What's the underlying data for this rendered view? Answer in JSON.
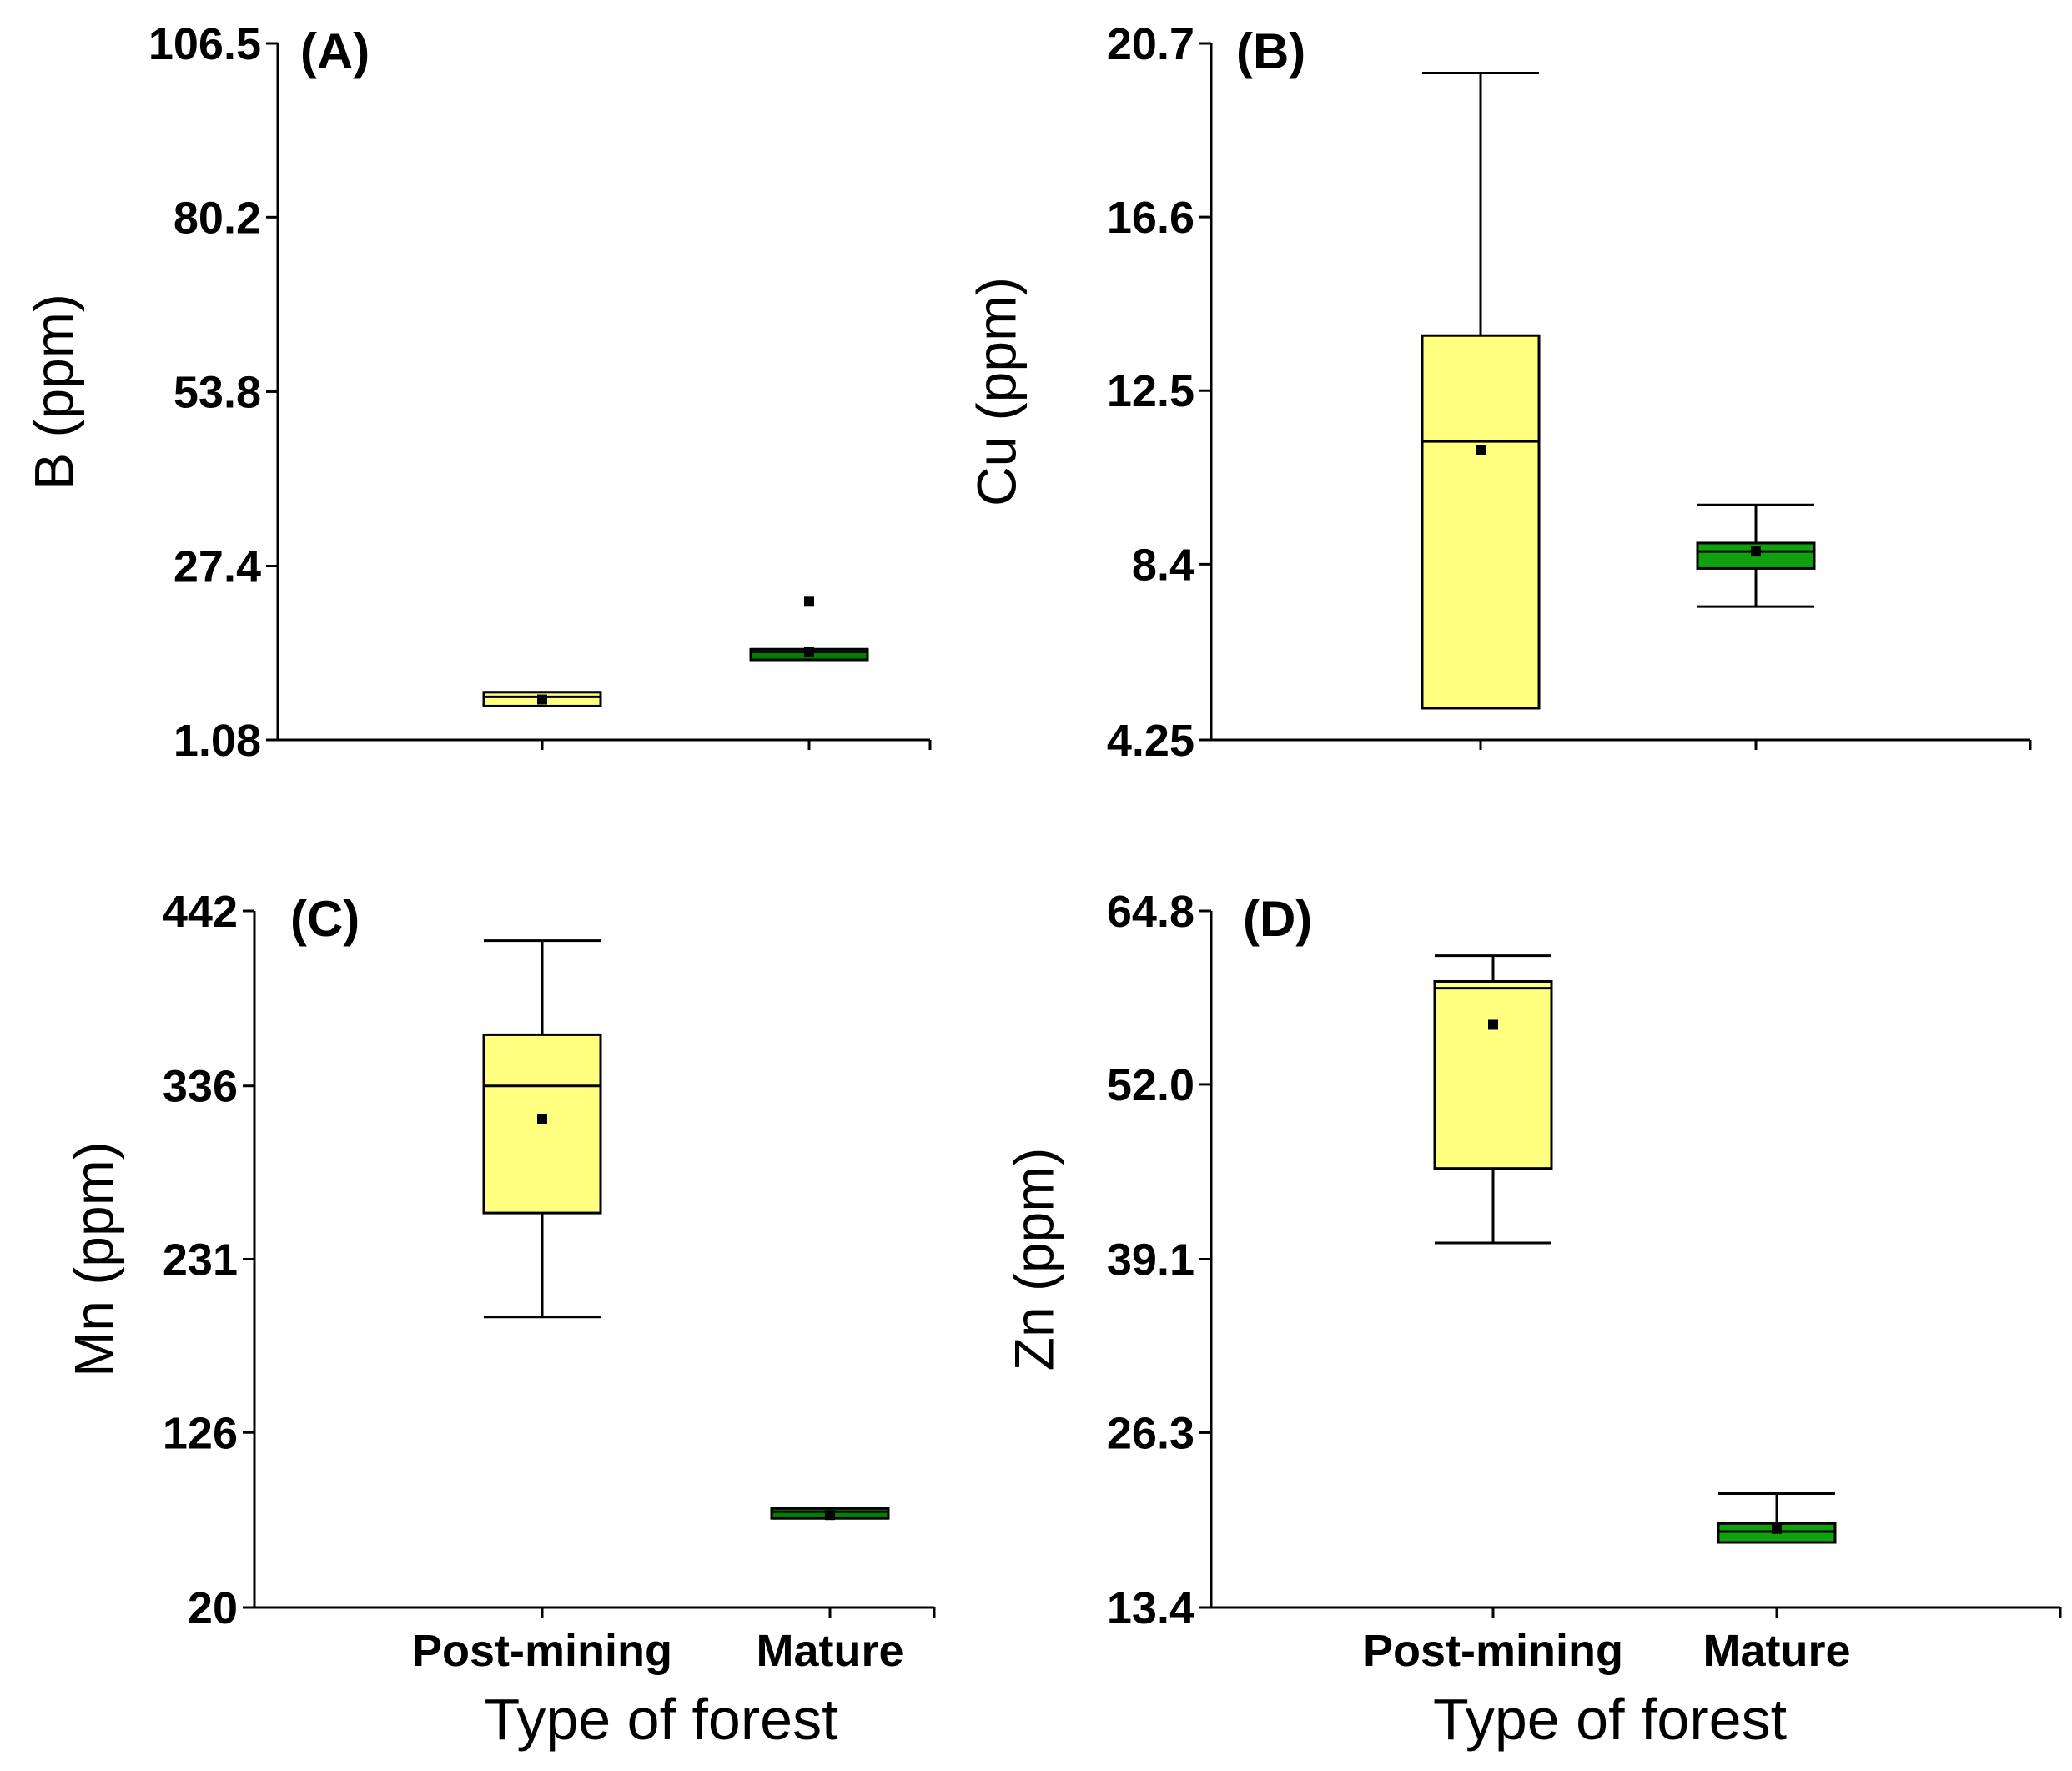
{
  "chart_data": [
    {
      "type": "box",
      "panel": "(A)",
      "ylabel": "B (ppm)",
      "xlabel": "",
      "yticks": [
        "1.08",
        "27.4",
        "53.8",
        "80.2",
        "106.5"
      ],
      "ylim": [
        1.08,
        106.5
      ],
      "categories": [
        "Post-mining",
        "Mature"
      ],
      "show_category_labels": false,
      "boxes": [
        {
          "category": "Post-mining",
          "whisker_low": 6.2,
          "q1": 6.2,
          "median": 7.6,
          "q3": 8.3,
          "whisker_high": 8.3,
          "mean": 7.2,
          "color": "#ffff80"
        },
        {
          "category": "Mature",
          "whisker_low": 13.2,
          "q1": 13.2,
          "median": 14.4,
          "q3": 14.8,
          "whisker_high": 14.8,
          "mean": 14.4,
          "outlier": 22.0,
          "color": "#008000"
        }
      ]
    },
    {
      "type": "box",
      "panel": "(B)",
      "ylabel": "Cu (ppm)",
      "xlabel": "",
      "yticks": [
        "4.25",
        "8.4",
        "12.5",
        "16.6",
        "20.7"
      ],
      "ylim": [
        4.25,
        20.7
      ],
      "categories": [
        "Post-mining",
        "Mature"
      ],
      "show_category_labels": false,
      "boxes": [
        {
          "category": "Post-mining",
          "whisker_low": 5.0,
          "q1": 5.0,
          "median": 11.3,
          "q3": 13.8,
          "whisker_high": 20.0,
          "mean": 11.1,
          "color": "#ffff80"
        },
        {
          "category": "Mature",
          "whisker_low": 7.4,
          "q1": 8.3,
          "median": 8.7,
          "q3": 8.9,
          "whisker_high": 9.8,
          "mean": 8.7,
          "color": "#10a010"
        }
      ]
    },
    {
      "type": "box",
      "panel": "(C)",
      "ylabel": "Mn (ppm)",
      "xlabel": "Type of forest",
      "yticks": [
        "20",
        "126",
        "231",
        "336",
        "442"
      ],
      "ylim": [
        20,
        442
      ],
      "categories": [
        "Post-mining",
        "Mature"
      ],
      "show_category_labels": true,
      "boxes": [
        {
          "category": "Post-mining",
          "whisker_low": 196,
          "q1": 259,
          "median": 336,
          "q3": 367,
          "whisker_high": 424,
          "mean": 316,
          "color": "#ffff80"
        },
        {
          "category": "Mature",
          "whisker_low": 74,
          "q1": 74,
          "median": 78,
          "q3": 80,
          "whisker_high": 80,
          "mean": 76,
          "color": "#008000"
        }
      ]
    },
    {
      "type": "box",
      "panel": "(D)",
      "ylabel": "Zn (ppm)",
      "xlabel": "Type of forest",
      "yticks": [
        "13.4",
        "26.3",
        "39.1",
        "52.0",
        "64.8"
      ],
      "ylim": [
        13.4,
        64.8
      ],
      "categories": [
        "Post-mining",
        "Mature"
      ],
      "show_category_labels": true,
      "boxes": [
        {
          "category": "Post-mining",
          "whisker_low": 40.3,
          "q1": 45.8,
          "median": 59.1,
          "q3": 59.6,
          "whisker_high": 61.5,
          "mean": 56.4,
          "color": "#ffff80"
        },
        {
          "category": "Mature",
          "whisker_low": 18.2,
          "q1": 18.2,
          "median": 19.0,
          "q3": 19.6,
          "whisker_high": 21.8,
          "mean": 19.2,
          "color": "#10a010"
        }
      ]
    }
  ]
}
